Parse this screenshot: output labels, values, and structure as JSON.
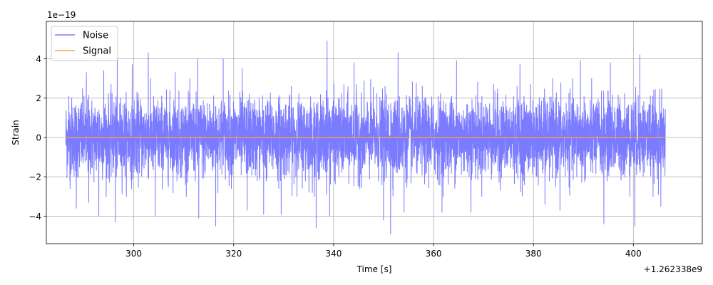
{
  "chart_data": {
    "type": "line",
    "xlabel": "Time [s]",
    "ylabel": "Strain",
    "x_offset_label": "+1.262338e9",
    "y_scale_label": "1e−19",
    "xlim": [
      282.5,
      413.8
    ],
    "ylim": [
      -5.4,
      5.9
    ],
    "x_ticks": [
      300,
      320,
      340,
      360,
      380,
      400
    ],
    "y_ticks": [
      -4,
      -2,
      0,
      2,
      4
    ],
    "grid": true,
    "legend_position": "top-left",
    "x_range": [
      286.4,
      406.4
    ],
    "series": [
      {
        "name": "Noise",
        "color": "#7b7bff",
        "typical_envelope": [
          -2.2,
          2.2
        ],
        "peaks": [
          {
            "x": 287.0,
            "y": 2.1
          },
          {
            "x": 287.2,
            "y": -2.2
          },
          {
            "x": 288.5,
            "y": -3.6
          },
          {
            "x": 290.5,
            "y": 3.3
          },
          {
            "x": 291.0,
            "y": -3.3
          },
          {
            "x": 293.0,
            "y": -4.0
          },
          {
            "x": 294.0,
            "y": 3.4
          },
          {
            "x": 296.3,
            "y": -4.3
          },
          {
            "x": 296.7,
            "y": 4.1
          },
          {
            "x": 299.7,
            "y": 3.7
          },
          {
            "x": 302.9,
            "y": 4.3
          },
          {
            "x": 304.3,
            "y": -4.0
          },
          {
            "x": 308.3,
            "y": 3.3
          },
          {
            "x": 312.8,
            "y": 4.0
          },
          {
            "x": 313.0,
            "y": -4.1
          },
          {
            "x": 316.4,
            "y": -4.5
          },
          {
            "x": 317.9,
            "y": 4.0
          },
          {
            "x": 321.7,
            "y": 3.5
          },
          {
            "x": 322.7,
            "y": -3.7
          },
          {
            "x": 326.0,
            "y": -3.9
          },
          {
            "x": 329.5,
            "y": -3.9
          },
          {
            "x": 336.5,
            "y": -4.6
          },
          {
            "x": 338.7,
            "y": 4.9
          },
          {
            "x": 339.2,
            "y": 5.4
          },
          {
            "x": 339.2,
            "y": -4.0
          },
          {
            "x": 344.1,
            "y": 3.8
          },
          {
            "x": 350.0,
            "y": -4.2
          },
          {
            "x": 351.4,
            "y": -4.9
          },
          {
            "x": 352.9,
            "y": 4.3
          },
          {
            "x": 354.1,
            "y": -3.8
          },
          {
            "x": 361.7,
            "y": -3.8
          },
          {
            "x": 364.6,
            "y": 3.9
          },
          {
            "x": 367.5,
            "y": -3.8
          },
          {
            "x": 377.3,
            "y": 3.7
          },
          {
            "x": 382.3,
            "y": -3.4
          },
          {
            "x": 385.3,
            "y": -3.7
          },
          {
            "x": 389.4,
            "y": 3.9
          },
          {
            "x": 394.1,
            "y": -4.4
          },
          {
            "x": 395.4,
            "y": 3.8
          },
          {
            "x": 400.3,
            "y": -4.5
          },
          {
            "x": 401.3,
            "y": 4.2
          },
          {
            "x": 405.5,
            "y": -3.5
          }
        ]
      },
      {
        "name": "Signal",
        "color": "#ffa540",
        "x": [
          286.4,
          406.4
        ],
        "values": [
          0,
          0
        ]
      }
    ]
  }
}
